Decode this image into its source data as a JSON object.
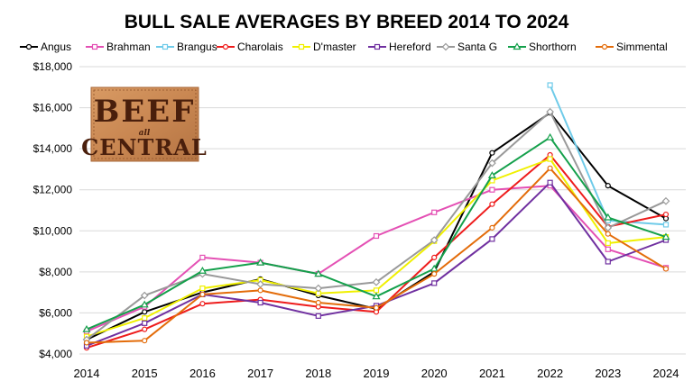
{
  "chart_data": {
    "type": "line",
    "title": "BULL SALE AVERAGES BY BREED 2014 TO 2024",
    "xlabel": "",
    "ylabel": "",
    "x": [
      "2014",
      "2015",
      "2016",
      "2017",
      "2018",
      "2019",
      "2020",
      "2021",
      "2022",
      "2023",
      "2024"
    ],
    "ylim": [
      4000,
      18000
    ],
    "yticks": [
      {
        "value": 4000,
        "label": "$4,000"
      },
      {
        "value": 6000,
        "label": "$6,000"
      },
      {
        "value": 8000,
        "label": "$8,000"
      },
      {
        "value": 10000,
        "label": "$10,000"
      },
      {
        "value": 12000,
        "label": "$12,000"
      },
      {
        "value": 14000,
        "label": "$14,000"
      },
      {
        "value": 16000,
        "label": "$16,000"
      },
      {
        "value": 18000,
        "label": "$18,000"
      }
    ],
    "grid": "horizontal",
    "legend_position": "top",
    "series": [
      {
        "name": "Angus",
        "color": "#000000",
        "marker": "circle",
        "values": [
          4700,
          6050,
          7000,
          7650,
          6850,
          6200,
          8000,
          13800,
          15750,
          12200,
          10600
        ]
      },
      {
        "name": "Brahman",
        "color": "#e450b4",
        "marker": "square",
        "values": [
          5100,
          6300,
          8700,
          8450,
          7900,
          9750,
          10900,
          12000,
          12200,
          9100,
          8200
        ]
      },
      {
        "name": "Brangus",
        "color": "#6fcbe9",
        "marker": "square",
        "values": [
          null,
          null,
          null,
          null,
          null,
          null,
          null,
          null,
          17100,
          10500,
          10300
        ]
      },
      {
        "name": "Charolais",
        "color": "#ee1c1c",
        "marker": "circle",
        "values": [
          4300,
          5200,
          6450,
          6650,
          6300,
          6050,
          8700,
          11300,
          13700,
          10200,
          10800
        ]
      },
      {
        "name": "D'master",
        "color": "#f0f000",
        "marker": "square",
        "values": [
          4850,
          5750,
          7200,
          7600,
          6950,
          7100,
          9500,
          12450,
          13500,
          9400,
          9700
        ]
      },
      {
        "name": "Hereford",
        "color": "#7030a0",
        "marker": "square",
        "values": [
          4400,
          5500,
          6900,
          6500,
          5850,
          6350,
          7450,
          9600,
          12350,
          8500,
          9550
        ]
      },
      {
        "name": "Santa G",
        "color": "#999999",
        "marker": "diamond",
        "values": [
          4700,
          6850,
          7900,
          7400,
          7200,
          7500,
          9550,
          13300,
          15800,
          10150,
          11450
        ]
      },
      {
        "name": "Shorthorn",
        "color": "#14a04b",
        "marker": "triangle",
        "values": [
          5200,
          6400,
          8050,
          8450,
          7900,
          6800,
          8150,
          12700,
          14550,
          10650,
          9700
        ]
      },
      {
        "name": "Simmental",
        "color": "#e36c0a",
        "marker": "circle",
        "values": [
          4550,
          4650,
          6900,
          7100,
          6500,
          6250,
          7900,
          10150,
          13050,
          9850,
          8150
        ]
      }
    ]
  },
  "logo": {
    "line1": "BEEF",
    "mid": "all",
    "line2": "CENTRAL"
  }
}
